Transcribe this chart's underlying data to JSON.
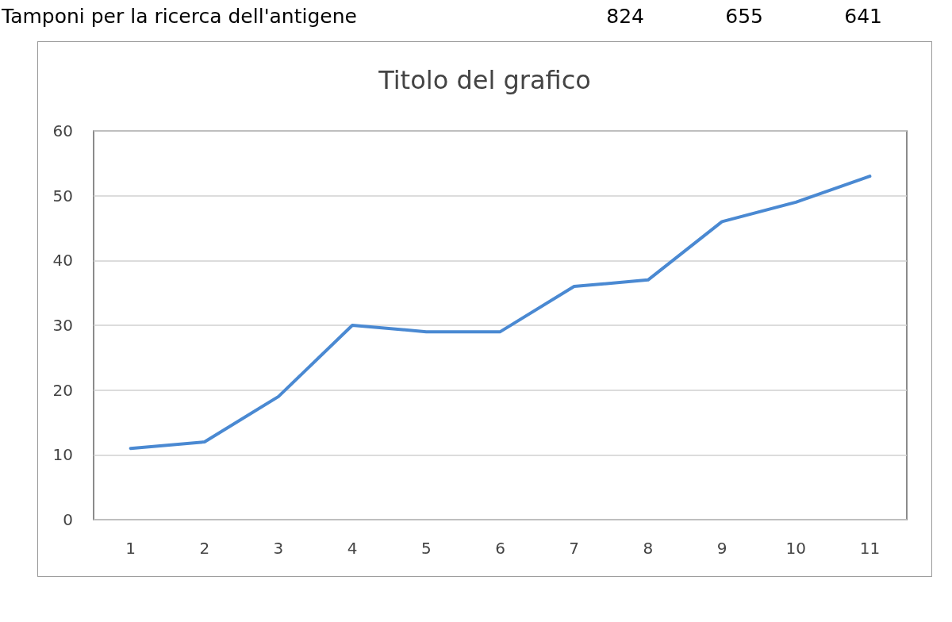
{
  "chart_data": {
    "type": "line",
    "title": "Titolo del grafico",
    "categories": [
      "1",
      "2",
      "3",
      "4",
      "5",
      "6",
      "7",
      "8",
      "9",
      "10",
      "11"
    ],
    "series": [
      {
        "color": "#4a89d2",
        "values": [
          11,
          12,
          19,
          30,
          29,
          29,
          36,
          37,
          46,
          49,
          53
        ]
      }
    ],
    "ylim": [
      0,
      60
    ],
    "yticks": [
      0,
      10,
      20,
      30,
      40,
      50,
      60
    ],
    "grid": "y",
    "marker": "none",
    "line_style": "solid",
    "annotations": [
      "Tamponi per la ricerca dell'antigene",
      "824",
      "655",
      "641"
    ]
  }
}
